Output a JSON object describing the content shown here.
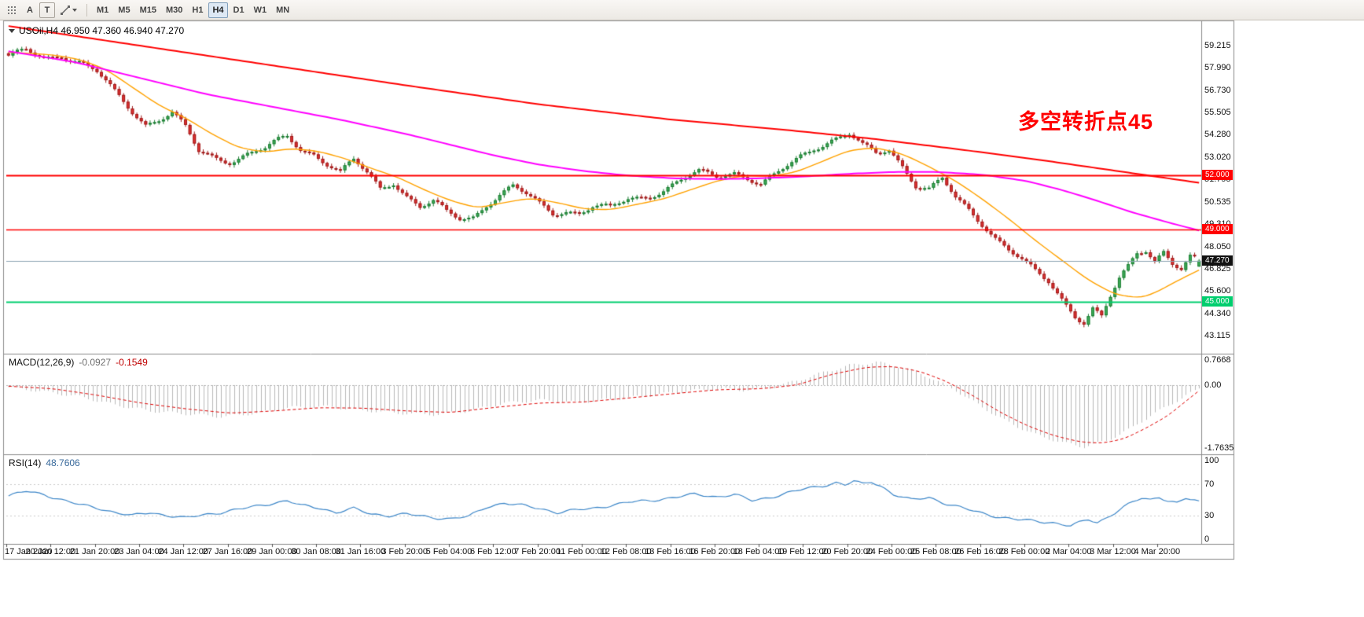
{
  "toolbar": {
    "a_button": "A",
    "t_button": "T",
    "timeframes": [
      "M1",
      "M5",
      "M15",
      "M30",
      "H1",
      "H4",
      "D1",
      "W1",
      "MN"
    ],
    "active_timeframe": "H4"
  },
  "chart": {
    "header": "USOil,H4 46.950 47.360 46.940 47.270",
    "symbol": "USOil",
    "timeframe": "H4",
    "annotation": "多空转折点45",
    "badges": {
      "resistance": "52.000",
      "support_mid": "49.000",
      "support_low": "45.000",
      "current_price": "47.270"
    },
    "price_axis": [
      "59.215",
      "57.990",
      "56.730",
      "55.505",
      "54.280",
      "53.020",
      "51.795",
      "50.535",
      "49.310",
      "48.050",
      "46.825",
      "45.600",
      "44.340",
      "43.115"
    ],
    "time_axis": [
      "17 Jan 2020",
      "20 Jan 12:00",
      "21 Jan 20:00",
      "23 Jan 04:00",
      "24 Jan 12:00",
      "27 Jan 16:00",
      "29 Jan 00:00",
      "30 Jan 08:00",
      "31 Jan 16:00",
      "3 Feb 20:00",
      "5 Feb 04:00",
      "6 Feb 12:00",
      "7 Feb 20:00",
      "11 Feb 00:00",
      "12 Feb 08:00",
      "13 Feb 16:00",
      "16 Feb 20:00",
      "18 Feb 04:00",
      "19 Feb 12:00",
      "20 Feb 20:00",
      "24 Feb 00:00",
      "25 Feb 08:00",
      "26 Feb 16:00",
      "28 Feb 00:00",
      "2 Mar 04:00",
      "3 Mar 12:00",
      "4 Mar 20:00"
    ]
  },
  "macd": {
    "label": "MACD(12,26,9)",
    "main_value": "-0.0927",
    "signal_value": "-0.1549",
    "axis": [
      "0.7668",
      "0.00",
      "-1.7635"
    ]
  },
  "rsi": {
    "label": "RSI(14)",
    "value": "48.7606",
    "axis": [
      "100",
      "70",
      "30",
      "0"
    ]
  },
  "colors": {
    "up_fill": "#3fae5a",
    "up_stroke": "#1d7c33",
    "down_fill": "#e03232",
    "down_stroke": "#9d1c1c",
    "ma_red": "#ff0000",
    "ma_magenta": "#ff00ff",
    "ma_orange": "#ffa200",
    "level_red": "#ff0000",
    "level_green": "#00ce6e",
    "price_line": "#8fa6b5",
    "badge_black": "#111111",
    "macd_hist": "#b9b9b9",
    "macd_signal": "#e00000",
    "rsi_line": "#3d87c9",
    "annotation_red": "#ff0000"
  },
  "chart_data": {
    "type": "candlestick",
    "symbol": "USOil",
    "timeframe": "H4",
    "candle_count": 270,
    "visible_price_range": [
      43.115,
      59.215
    ],
    "horizontal_levels": [
      52.0,
      49.0,
      45.0
    ],
    "current_price": 47.27,
    "last_candle": {
      "open": 46.95,
      "high": 47.36,
      "low": 46.94,
      "close": 47.27
    },
    "close_anchors": [
      [
        0,
        58.55
      ],
      [
        4,
        58.9
      ],
      [
        8,
        58.55
      ],
      [
        12,
        58.75
      ],
      [
        16,
        58.3
      ],
      [
        20,
        57.7
      ],
      [
        24,
        56.6
      ],
      [
        28,
        55.6
      ],
      [
        31,
        54.9
      ],
      [
        34,
        55.15
      ],
      [
        37,
        55.45
      ],
      [
        40,
        54.6
      ],
      [
        43,
        53.3
      ],
      [
        47,
        53.0
      ],
      [
        50,
        52.85
      ],
      [
        54,
        53.2
      ],
      [
        58,
        53.45
      ],
      [
        61,
        53.9
      ],
      [
        63,
        54.15
      ],
      [
        66,
        53.5
      ],
      [
        69,
        53.25
      ],
      [
        72,
        52.7
      ],
      [
        75,
        52.15
      ],
      [
        78,
        52.8
      ],
      [
        81,
        52.1
      ],
      [
        84,
        51.3
      ],
      [
        87,
        51.7
      ],
      [
        90,
        50.9
      ],
      [
        93,
        50.25
      ],
      [
        96,
        50.5
      ],
      [
        99,
        49.9
      ],
      [
        102,
        49.6
      ],
      [
        105,
        49.75
      ],
      [
        108,
        50.45
      ],
      [
        111,
        50.95
      ],
      [
        114,
        51.35
      ],
      [
        117,
        50.9
      ],
      [
        120,
        50.4
      ],
      [
        123,
        49.95
      ],
      [
        126,
        50.1
      ],
      [
        129,
        49.95
      ],
      [
        132,
        50.25
      ],
      [
        136,
        50.15
      ],
      [
        140,
        50.7
      ],
      [
        144,
        50.9
      ],
      [
        148,
        51.2
      ],
      [
        152,
        51.7
      ],
      [
        156,
        52.15
      ],
      [
        160,
        52.0
      ],
      [
        164,
        52.25
      ],
      [
        167,
        51.9
      ],
      [
        170,
        51.45
      ],
      [
        173,
        51.9
      ],
      [
        176,
        52.5
      ],
      [
        179,
        53.1
      ],
      [
        182,
        53.6
      ],
      [
        186,
        54.0
      ],
      [
        190,
        54.25
      ],
      [
        193,
        53.6
      ],
      [
        196,
        53.2
      ],
      [
        199,
        53.5
      ],
      [
        202,
        52.6
      ],
      [
        205,
        51.5
      ],
      [
        208,
        51.2
      ],
      [
        211,
        51.75
      ],
      [
        214,
        50.7
      ],
      [
        217,
        50.1
      ],
      [
        220,
        49.4
      ],
      [
        223,
        48.6
      ],
      [
        226,
        47.9
      ],
      [
        229,
        47.25
      ],
      [
        232,
        46.6
      ],
      [
        235,
        46.1
      ],
      [
        238,
        45.2
      ],
      [
        241,
        44.3
      ],
      [
        243,
        43.9
      ],
      [
        245,
        44.6
      ],
      [
        247,
        44.1
      ],
      [
        249,
        45.2
      ],
      [
        251,
        46.2
      ],
      [
        253,
        46.9
      ],
      [
        255,
        47.7
      ],
      [
        257,
        47.95
      ],
      [
        259,
        47.4
      ],
      [
        261,
        47.85
      ],
      [
        263,
        47.15
      ],
      [
        265,
        46.8
      ],
      [
        267,
        47.4
      ],
      [
        269,
        47.27
      ]
    ],
    "ma_red_anchors": [
      [
        0,
        60.3
      ],
      [
        30,
        59.2
      ],
      [
        60,
        58.1
      ],
      [
        90,
        57.0
      ],
      [
        120,
        55.95
      ],
      [
        150,
        55.1
      ],
      [
        175,
        54.55
      ],
      [
        195,
        54.05
      ],
      [
        215,
        53.45
      ],
      [
        235,
        52.8
      ],
      [
        252,
        52.2
      ],
      [
        269,
        51.6
      ]
    ],
    "ma_magenta_anchors": [
      [
        0,
        58.9
      ],
      [
        15,
        58.3
      ],
      [
        30,
        57.4
      ],
      [
        45,
        56.5
      ],
      [
        60,
        55.8
      ],
      [
        75,
        55.1
      ],
      [
        90,
        54.3
      ],
      [
        100,
        53.7
      ],
      [
        110,
        53.1
      ],
      [
        120,
        52.6
      ],
      [
        130,
        52.25
      ],
      [
        140,
        52.0
      ],
      [
        150,
        51.85
      ],
      [
        160,
        51.8
      ],
      [
        170,
        51.85
      ],
      [
        180,
        51.95
      ],
      [
        190,
        52.1
      ],
      [
        200,
        52.2
      ],
      [
        210,
        52.2
      ],
      [
        220,
        52.05
      ],
      [
        230,
        51.7
      ],
      [
        238,
        51.2
      ],
      [
        246,
        50.6
      ],
      [
        254,
        49.95
      ],
      [
        262,
        49.4
      ],
      [
        269,
        48.95
      ]
    ],
    "ma_orange_anchors": [
      [
        0,
        58.85
      ],
      [
        10,
        58.7
      ],
      [
        16,
        58.45
      ],
      [
        22,
        57.9
      ],
      [
        28,
        56.9
      ],
      [
        34,
        55.9
      ],
      [
        40,
        55.2
      ],
      [
        46,
        54.3
      ],
      [
        52,
        53.55
      ],
      [
        58,
        53.3
      ],
      [
        64,
        53.5
      ],
      [
        70,
        53.35
      ],
      [
        76,
        52.95
      ],
      [
        82,
        52.4
      ],
      [
        88,
        51.9
      ],
      [
        94,
        51.2
      ],
      [
        100,
        50.6
      ],
      [
        106,
        50.2
      ],
      [
        112,
        50.5
      ],
      [
        118,
        50.75
      ],
      [
        124,
        50.5
      ],
      [
        130,
        50.15
      ],
      [
        136,
        50.1
      ],
      [
        142,
        50.4
      ],
      [
        148,
        50.7
      ],
      [
        154,
        51.2
      ],
      [
        160,
        51.7
      ],
      [
        166,
        52.0
      ],
      [
        172,
        51.95
      ],
      [
        178,
        52.2
      ],
      [
        184,
        52.8
      ],
      [
        190,
        53.4
      ],
      [
        196,
        53.55
      ],
      [
        202,
        53.2
      ],
      [
        208,
        52.5
      ],
      [
        214,
        51.7
      ],
      [
        220,
        50.7
      ],
      [
        226,
        49.6
      ],
      [
        232,
        48.4
      ],
      [
        238,
        47.3
      ],
      [
        244,
        46.2
      ],
      [
        250,
        45.4
      ],
      [
        256,
        45.2
      ],
      [
        260,
        45.6
      ],
      [
        264,
        46.15
      ],
      [
        269,
        46.75
      ]
    ],
    "macd": {
      "last_main": -0.0927,
      "last_signal": -0.1549,
      "scale_top": 0.7668,
      "scale_bottom": -1.7635,
      "main_anchors": [
        [
          0,
          -0.06
        ],
        [
          8,
          -0.18
        ],
        [
          16,
          -0.32
        ],
        [
          24,
          -0.55
        ],
        [
          32,
          -0.72
        ],
        [
          40,
          -0.8
        ],
        [
          48,
          -0.88
        ],
        [
          56,
          -0.78
        ],
        [
          64,
          -0.62
        ],
        [
          72,
          -0.6
        ],
        [
          80,
          -0.7
        ],
        [
          88,
          -0.78
        ],
        [
          96,
          -0.82
        ],
        [
          104,
          -0.72
        ],
        [
          112,
          -0.5
        ],
        [
          120,
          -0.42
        ],
        [
          128,
          -0.48
        ],
        [
          136,
          -0.4
        ],
        [
          144,
          -0.3
        ],
        [
          152,
          -0.18
        ],
        [
          160,
          -0.1
        ],
        [
          166,
          -0.14
        ],
        [
          172,
          -0.08
        ],
        [
          178,
          0.12
        ],
        [
          184,
          0.35
        ],
        [
          190,
          0.55
        ],
        [
          196,
          0.64
        ],
        [
          202,
          0.5
        ],
        [
          208,
          0.22
        ],
        [
          214,
          -0.15
        ],
        [
          220,
          -0.62
        ],
        [
          226,
          -1.05
        ],
        [
          232,
          -1.38
        ],
        [
          238,
          -1.6
        ],
        [
          243,
          -1.72
        ],
        [
          248,
          -1.55
        ],
        [
          253,
          -1.25
        ],
        [
          258,
          -0.85
        ],
        [
          263,
          -0.5
        ],
        [
          269,
          -0.0927
        ]
      ],
      "signal_anchors": [
        [
          0,
          -0.03
        ],
        [
          10,
          -0.1
        ],
        [
          20,
          -0.28
        ],
        [
          30,
          -0.5
        ],
        [
          40,
          -0.66
        ],
        [
          50,
          -0.78
        ],
        [
          60,
          -0.72
        ],
        [
          70,
          -0.63
        ],
        [
          80,
          -0.64
        ],
        [
          90,
          -0.72
        ],
        [
          100,
          -0.76
        ],
        [
          110,
          -0.62
        ],
        [
          120,
          -0.5
        ],
        [
          130,
          -0.47
        ],
        [
          140,
          -0.36
        ],
        [
          150,
          -0.24
        ],
        [
          160,
          -0.13
        ],
        [
          170,
          -0.1
        ],
        [
          178,
          0.0
        ],
        [
          186,
          0.3
        ],
        [
          194,
          0.5
        ],
        [
          200,
          0.52
        ],
        [
          206,
          0.38
        ],
        [
          212,
          0.1
        ],
        [
          218,
          -0.3
        ],
        [
          224,
          -0.75
        ],
        [
          230,
          -1.12
        ],
        [
          236,
          -1.4
        ],
        [
          242,
          -1.58
        ],
        [
          247,
          -1.62
        ],
        [
          252,
          -1.5
        ],
        [
          257,
          -1.2
        ],
        [
          262,
          -0.85
        ],
        [
          266,
          -0.45
        ],
        [
          269,
          -0.1549
        ]
      ]
    },
    "rsi": {
      "last": 48.76,
      "levels": [
        70,
        30
      ],
      "scale": [
        0,
        100
      ],
      "anchors": [
        [
          0,
          55
        ],
        [
          4,
          61
        ],
        [
          8,
          57
        ],
        [
          12,
          50
        ],
        [
          16,
          44
        ],
        [
          20,
          40
        ],
        [
          24,
          34
        ],
        [
          28,
          30
        ],
        [
          32,
          34
        ],
        [
          36,
          30
        ],
        [
          40,
          27
        ],
        [
          44,
          31
        ],
        [
          48,
          34
        ],
        [
          52,
          38
        ],
        [
          56,
          42
        ],
        [
          60,
          46
        ],
        [
          63,
          49
        ],
        [
          66,
          43
        ],
        [
          70,
          40
        ],
        [
          74,
          34
        ],
        [
          78,
          39
        ],
        [
          82,
          32
        ],
        [
          86,
          30
        ],
        [
          90,
          32
        ],
        [
          95,
          28
        ],
        [
          100,
          26
        ],
        [
          104,
          29
        ],
        [
          108,
          41
        ],
        [
          112,
          46
        ],
        [
          116,
          43
        ],
        [
          120,
          39
        ],
        [
          124,
          34
        ],
        [
          128,
          37
        ],
        [
          132,
          39
        ],
        [
          136,
          43
        ],
        [
          140,
          47
        ],
        [
          145,
          49
        ],
        [
          150,
          53
        ],
        [
          155,
          57
        ],
        [
          160,
          54
        ],
        [
          164,
          57
        ],
        [
          168,
          49
        ],
        [
          172,
          53
        ],
        [
          176,
          59
        ],
        [
          180,
          64
        ],
        [
          184,
          68
        ],
        [
          187,
          72
        ],
        [
          189,
          69
        ],
        [
          191,
          74
        ],
        [
          193,
          70
        ],
        [
          195,
          73
        ],
        [
          197,
          68
        ],
        [
          200,
          57
        ],
        [
          204,
          50
        ],
        [
          208,
          53
        ],
        [
          212,
          45
        ],
        [
          216,
          39
        ],
        [
          220,
          33
        ],
        [
          224,
          28
        ],
        [
          228,
          25
        ],
        [
          232,
          23
        ],
        [
          236,
          21
        ],
        [
          240,
          17
        ],
        [
          242,
          21
        ],
        [
          244,
          25
        ],
        [
          246,
          21
        ],
        [
          248,
          27
        ],
        [
          250,
          34
        ],
        [
          252,
          41
        ],
        [
          254,
          47
        ],
        [
          256,
          52
        ],
        [
          258,
          50
        ],
        [
          260,
          54
        ],
        [
          262,
          49
        ],
        [
          264,
          46
        ],
        [
          266,
          52
        ],
        [
          268,
          49
        ],
        [
          269,
          48.76
        ]
      ]
    }
  }
}
